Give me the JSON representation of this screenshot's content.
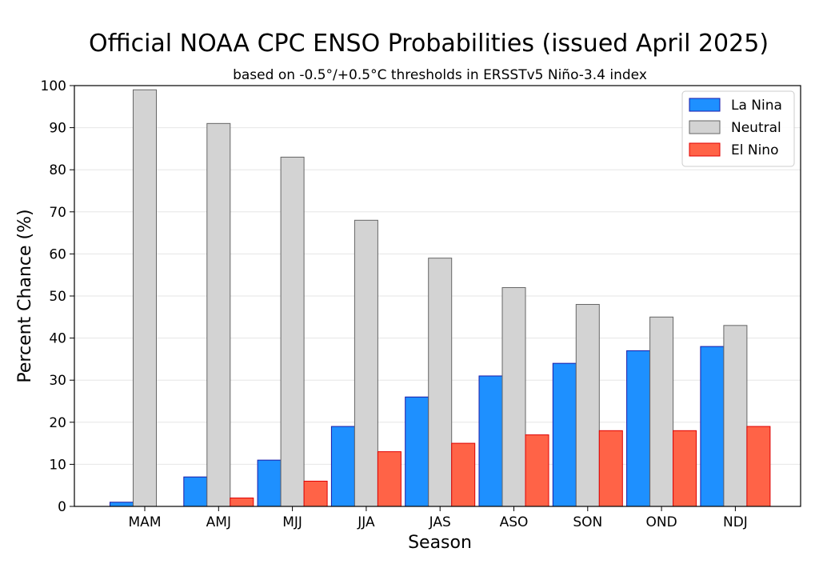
{
  "chart_data": {
    "type": "bar",
    "title": "Official NOAA CPC ENSO Probabilities (issued April 2025)",
    "subtitle": "based on -0.5°/+0.5°C thresholds in ERSSTv5 Niño-3.4 index",
    "xlabel": "Season",
    "ylabel": "Percent Chance (%)",
    "ylim": [
      0,
      100
    ],
    "yticks": [
      0,
      10,
      20,
      30,
      40,
      50,
      60,
      70,
      80,
      90,
      100
    ],
    "grid": true,
    "legend_position": "top-right",
    "categories": [
      "MAM",
      "AMJ",
      "MJJ",
      "JJA",
      "JAS",
      "ASO",
      "SON",
      "OND",
      "NDJ"
    ],
    "series": [
      {
        "name": "La Nina",
        "values": [
          1,
          7,
          11,
          19,
          26,
          31,
          34,
          37,
          38
        ],
        "color": "#1e90ff",
        "edge": "#1a1aa8"
      },
      {
        "name": "Neutral",
        "values": [
          99,
          91,
          83,
          68,
          59,
          52,
          48,
          45,
          43
        ],
        "color": "#d3d3d3",
        "edge": "#666666"
      },
      {
        "name": "El Nino",
        "values": [
          0,
          2,
          6,
          13,
          15,
          17,
          18,
          18,
          19
        ],
        "color": "#ff6347",
        "edge": "#e00000"
      }
    ]
  }
}
